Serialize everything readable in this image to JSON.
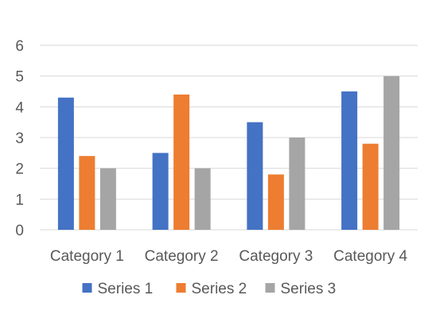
{
  "chart_data": {
    "type": "bar",
    "categories": [
      "Category 1",
      "Category 2",
      "Category 3",
      "Category 4"
    ],
    "series": [
      {
        "name": "Series 1",
        "values": [
          4.3,
          2.5,
          3.5,
          4.5
        ],
        "color": "#4472C4"
      },
      {
        "name": "Series 2",
        "values": [
          2.4,
          4.4,
          1.8,
          2.8
        ],
        "color": "#ED7D31"
      },
      {
        "name": "Series 3",
        "values": [
          2.0,
          2.0,
          3.0,
          5.0
        ],
        "color": "#A5A5A5"
      }
    ],
    "title": "",
    "xlabel": "",
    "ylabel": "",
    "ylim": [
      0,
      6
    ],
    "yticks": [
      0,
      1,
      2,
      3,
      4,
      5,
      6
    ],
    "grid": true,
    "legend_position": "bottom",
    "colors": {
      "gridline": "#D9D9D9",
      "axis": "#D9D9D9",
      "text": "#595959"
    }
  }
}
